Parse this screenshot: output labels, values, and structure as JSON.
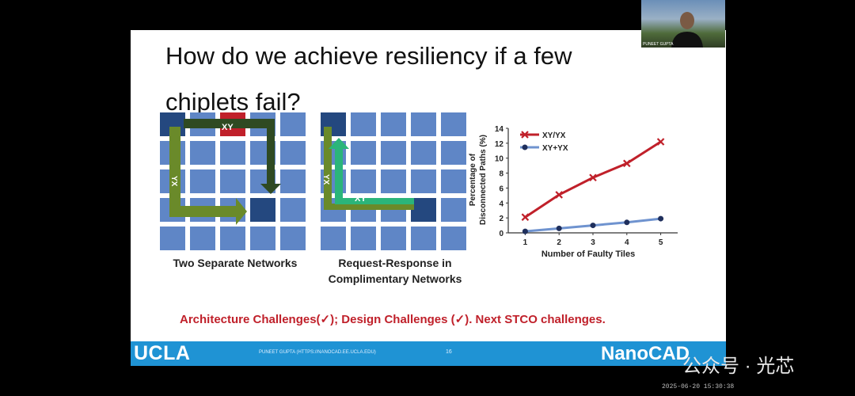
{
  "slide": {
    "title_line1": "How do we achieve resiliency if a few",
    "title_line2": "chiplets fail?",
    "left_diagram": {
      "caption": "Two Separate Networks",
      "route_xy_label": "XY",
      "route_yx_label": "YX"
    },
    "middle_diagram": {
      "caption_line1": "Request-Response in",
      "caption_line2": "Complimentary Networks",
      "route_xy_label": "XY",
      "route_yx_label": "YX"
    },
    "challenges_text": "Architecture Challenges(✓); Design Challenges (✓). Next STCO challenges.",
    "footer": {
      "logo_left": "UCLA",
      "url_text": "PUNEET GUPTA (HTTPS://NANOCAD.EE.UCLA.EDU)",
      "page_number": "16",
      "logo_right": "NanoCAD"
    }
  },
  "chart_data": {
    "type": "line",
    "x": [
      1,
      2,
      3,
      4,
      5
    ],
    "series": [
      {
        "name": "XY/YX",
        "values": [
          2.1,
          5.1,
          7.4,
          9.3,
          12.2
        ],
        "color": "#c0202a",
        "marker": "x"
      },
      {
        "name": "XY+YX",
        "values": [
          0.2,
          0.6,
          1.0,
          1.4,
          1.9
        ],
        "color": "#1f2f5c",
        "marker": "circle"
      }
    ],
    "xlabel": "Number of Faulty Tiles",
    "ylabel_line1": "Percentage of",
    "ylabel_line2": "Disconnected Paths (%)",
    "ylim": [
      0,
      14
    ],
    "yticks": [
      0,
      2,
      4,
      6,
      8,
      10,
      12,
      14
    ],
    "xticks": [
      1,
      2,
      3,
      4,
      5
    ],
    "legend_position": "top-left",
    "grid": false
  },
  "webcam": {
    "name": "PUNEET GUPTA"
  },
  "overlay": {
    "watermark": "公众号 · 光芯",
    "timestamp": "2025-06-20 15:30:38"
  },
  "colors": {
    "tile": "#5f86c6",
    "tile_dark": "#24487f",
    "fault_tile": "#c0202a",
    "route_dark_green": "#2f4a22",
    "route_olive": "#6a8a2a",
    "route_light_green": "#2bb57a",
    "footer_blue": "#1f93d4"
  }
}
